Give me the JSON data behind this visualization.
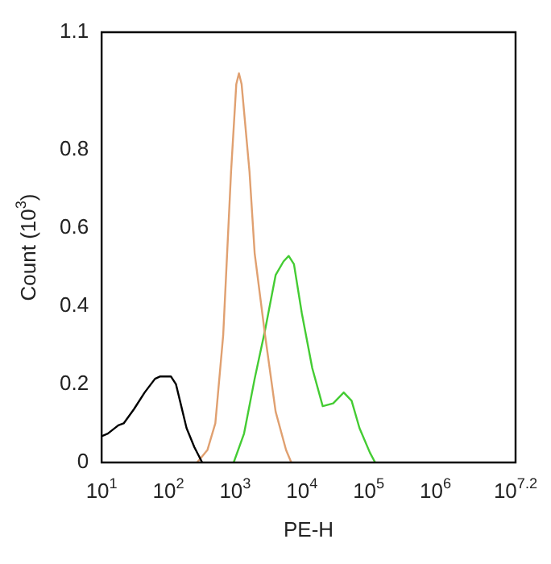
{
  "chart_data": {
    "type": "line",
    "xlabel": "PE-H",
    "ylabel": "Count (10$^{3}$)",
    "log": "x",
    "xlim": [
      10,
      15848932
    ],
    "ylim": [
      0,
      1.1
    ],
    "xticks": [
      {
        "value": 10,
        "label": "10$^{1}$"
      },
      {
        "value": 100,
        "label": "10$^{2}$"
      },
      {
        "value": 1000,
        "label": "10$^{3}$"
      },
      {
        "value": 10000,
        "label": "10$^{4}$"
      },
      {
        "value": 100000,
        "label": "10$^{5}$"
      },
      {
        "value": 1000000,
        "label": "10$^{6}$"
      },
      {
        "value": 15848932,
        "label": "10$^{7.2}$"
      }
    ],
    "yticks": [
      0,
      0.2,
      0.4,
      0.6,
      0.8,
      1.1
    ],
    "grid": false,
    "legend": false,
    "marker": "none",
    "line_style": "solid",
    "series": [
      {
        "color": "#000000",
        "x": [
          10,
          12.4,
          17.8,
          21.4,
          30.7,
          44.1,
          63.1,
          75.7,
          109,
          130,
          156,
          187,
          245,
          321
        ],
        "values": [
          0.067,
          0.074,
          0.095,
          0.1,
          0.137,
          0.179,
          0.214,
          0.22,
          0.22,
          0.2,
          0.144,
          0.088,
          0.039,
          0
        ]
      },
      {
        "color": "#e0a070",
        "x": [
          269,
          385,
          505,
          662,
          869,
          1040,
          1140,
          1250,
          1640,
          1960,
          2810,
          4040,
          5790,
          6930
        ],
        "values": [
          0,
          0.032,
          0.1,
          0.325,
          0.744,
          0.967,
          0.995,
          0.967,
          0.744,
          0.535,
          0.325,
          0.13,
          0.032,
          0
        ]
      },
      {
        "color": "#44cc33",
        "x": [
          951,
          1360,
          1960,
          2810,
          4040,
          5300,
          6340,
          7600,
          9980,
          14300,
          20500,
          29400,
          42300,
          55500,
          72800,
          104500,
          125000
        ],
        "values": [
          0,
          0.074,
          0.214,
          0.339,
          0.479,
          0.514,
          0.528,
          0.507,
          0.381,
          0.241,
          0.144,
          0.151,
          0.179,
          0.158,
          0.088,
          0.025,
          0
        ]
      }
    ]
  }
}
